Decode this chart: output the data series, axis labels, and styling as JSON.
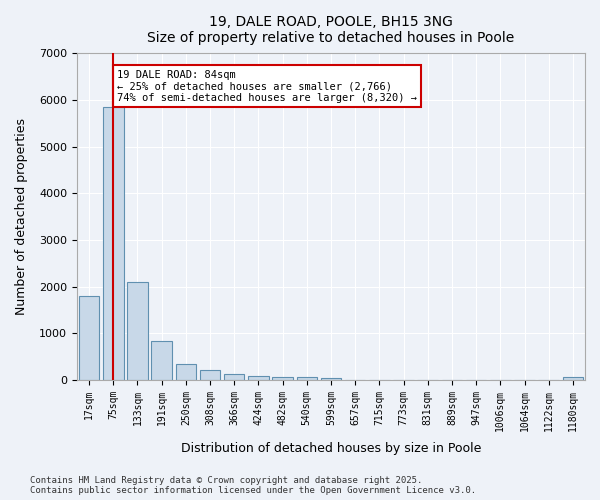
{
  "title": "19, DALE ROAD, POOLE, BH15 3NG",
  "subtitle": "Size of property relative to detached houses in Poole",
  "xlabel": "Distribution of detached houses by size in Poole",
  "ylabel": "Number of detached properties",
  "categories": [
    "17sqm",
    "75sqm",
    "133sqm",
    "191sqm",
    "250sqm",
    "308sqm",
    "366sqm",
    "424sqm",
    "482sqm",
    "540sqm",
    "599sqm",
    "657sqm",
    "715sqm",
    "773sqm",
    "831sqm",
    "889sqm",
    "947sqm",
    "1006sqm",
    "1064sqm",
    "1122sqm",
    "1180sqm"
  ],
  "values": [
    1800,
    5850,
    2100,
    830,
    340,
    210,
    130,
    90,
    70,
    55,
    45,
    0,
    0,
    0,
    0,
    0,
    0,
    0,
    0,
    0,
    60
  ],
  "bar_color": "#c8d8e8",
  "bar_edge_color": "#6090b0",
  "vline_x_index": 1,
  "vline_color": "#cc0000",
  "annotation_text": "19 DALE ROAD: 84sqm\n← 25% of detached houses are smaller (2,766)\n74% of semi-detached houses are larger (8,320) →",
  "annotation_box_color": "#cc0000",
  "ylim": [
    0,
    7000
  ],
  "yticks": [
    0,
    1000,
    2000,
    3000,
    4000,
    5000,
    6000,
    7000
  ],
  "bg_color": "#eef2f8",
  "plot_bg_color": "#eef2f8",
  "grid_color": "#ffffff",
  "footer_line1": "Contains HM Land Registry data © Crown copyright and database right 2025.",
  "footer_line2": "Contains public sector information licensed under the Open Government Licence v3.0."
}
